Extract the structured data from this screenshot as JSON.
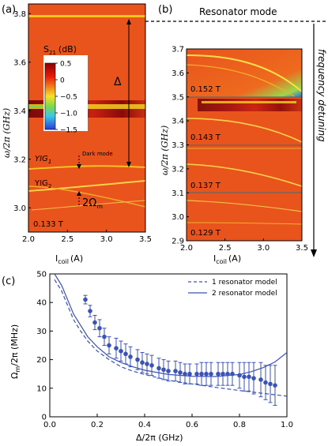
{
  "panel_labels": {
    "a": "(a)",
    "b": "(b)",
    "c": "(c)"
  },
  "annotations": {
    "resonator_mode": "Resonator mode",
    "frequency_detuning": "frequency detuning",
    "delta": "Δ",
    "yig1": "YIG",
    "yig1_sub": "1",
    "yig2": "YIG",
    "yig2_sub": "2",
    "dark_mode": "Dark mode",
    "two_omega": "2Ω",
    "two_omega_sub": "m"
  },
  "colors": {
    "heatmap_bg": "#e8541c",
    "resonator_band": "#f2d21f",
    "model_line": "#3b52b8",
    "dark_mode_text": "#8a8fd8"
  },
  "chart_data": [
    {
      "type": "heatmap",
      "panel": "(a)",
      "xlabel": "I",
      "xlabel_sub": "coil",
      "xlabel_unit": "(A)",
      "ylabel": "ω/2π (GHz)",
      "xlim": [
        2.0,
        3.5
      ],
      "ylim": [
        2.9,
        3.84
      ],
      "xticks": [
        "2.0",
        "2.5",
        "3.0",
        "3.5"
      ],
      "yticks": [
        "3.0",
        "3.2",
        "3.4",
        "3.6",
        "3.8"
      ],
      "field_label": "0.133 T",
      "colorbar": {
        "title": "S",
        "title_sub": "21",
        "title_unit": "(dB)",
        "min": -1.5,
        "max": 0.5,
        "ticks": [
          "0.5",
          "0",
          "−0.5",
          "−1.0",
          "−1.5"
        ]
      }
    },
    {
      "type": "heatmap",
      "panel": "(b)",
      "xlabel": "I",
      "xlabel_sub": "coil",
      "xlabel_unit": "(A)",
      "ylabel": "ω/2π (GHz)",
      "xlim": [
        2.0,
        3.5
      ],
      "ylim": [
        2.9,
        3.7
      ],
      "xticks": [
        "2.0",
        "2.5",
        "3.0",
        "3.5"
      ],
      "yticks": [
        "2.9",
        "3.0",
        "3.1",
        "3.2",
        "3.3",
        "3.4",
        "3.5",
        "3.6",
        "3.7"
      ],
      "strips": [
        {
          "field": "0.152 T",
          "ylim": [
            3.5,
            3.7
          ]
        },
        {
          "field": "0.143 T",
          "ylim": [
            3.3,
            3.5
          ]
        },
        {
          "field": "0.137 T",
          "ylim": [
            3.1,
            3.3
          ]
        },
        {
          "field": "0.129 T",
          "ylim": [
            2.9,
            3.1
          ]
        }
      ]
    },
    {
      "type": "scatter",
      "panel": "(c)",
      "xlabel": "Δ/2π (GHz)",
      "ylabel": "Ω",
      "ylabel_sub": "m",
      "ylabel_tail": "/2π (MHz)",
      "xlim": [
        0.0,
        1.0
      ],
      "ylim": [
        0,
        50
      ],
      "xticks": [
        "0.0",
        "0.2",
        "0.4",
        "0.6",
        "0.8",
        "1.0"
      ],
      "yticks": [
        "0",
        "10",
        "20",
        "30",
        "40",
        "50"
      ],
      "legend": {
        "placement": "top-right",
        "entries": [
          "1 resonator model",
          "2 resonator model"
        ]
      },
      "points": [
        {
          "x": 0.15,
          "y": 41.0,
          "err": 1.5
        },
        {
          "x": 0.17,
          "y": 37.0,
          "err": 2.0
        },
        {
          "x": 0.19,
          "y": 33.0,
          "err": 2.5
        },
        {
          "x": 0.21,
          "y": 31.0,
          "err": 3.0
        },
        {
          "x": 0.23,
          "y": 28.0,
          "err": 3.0
        },
        {
          "x": 0.25,
          "y": 25.0,
          "err": 3.0
        },
        {
          "x": 0.28,
          "y": 24.0,
          "err": 3.5
        },
        {
          "x": 0.3,
          "y": 23.0,
          "err": 3.5
        },
        {
          "x": 0.32,
          "y": 22.0,
          "err": 3.5
        },
        {
          "x": 0.34,
          "y": 21.0,
          "err": 3.5
        },
        {
          "x": 0.37,
          "y": 20.0,
          "err": 3.5
        },
        {
          "x": 0.39,
          "y": 19.0,
          "err": 3.5
        },
        {
          "x": 0.41,
          "y": 18.5,
          "err": 3.5
        },
        {
          "x": 0.43,
          "y": 18.0,
          "err": 3.5
        },
        {
          "x": 0.46,
          "y": 17.0,
          "err": 3.5
        },
        {
          "x": 0.48,
          "y": 16.5,
          "err": 3.5
        },
        {
          "x": 0.5,
          "y": 16.0,
          "err": 3.5
        },
        {
          "x": 0.53,
          "y": 16.0,
          "err": 3.5
        },
        {
          "x": 0.55,
          "y": 15.5,
          "err": 3.5
        },
        {
          "x": 0.57,
          "y": 15.0,
          "err": 3.5
        },
        {
          "x": 0.59,
          "y": 15.0,
          "err": 3.5
        },
        {
          "x": 0.62,
          "y": 15.0,
          "err": 3.5
        },
        {
          "x": 0.64,
          "y": 15.0,
          "err": 4.0
        },
        {
          "x": 0.66,
          "y": 15.0,
          "err": 4.0
        },
        {
          "x": 0.68,
          "y": 15.0,
          "err": 4.0
        },
        {
          "x": 0.71,
          "y": 15.0,
          "err": 4.0
        },
        {
          "x": 0.73,
          "y": 15.0,
          "err": 4.0
        },
        {
          "x": 0.75,
          "y": 15.0,
          "err": 4.0
        },
        {
          "x": 0.77,
          "y": 15.0,
          "err": 4.0
        },
        {
          "x": 0.8,
          "y": 14.5,
          "err": 4.5
        },
        {
          "x": 0.82,
          "y": 14.0,
          "err": 5.0
        },
        {
          "x": 0.84,
          "y": 14.0,
          "err": 5.0
        },
        {
          "x": 0.86,
          "y": 13.5,
          "err": 5.5
        },
        {
          "x": 0.89,
          "y": 13.0,
          "err": 6.0
        },
        {
          "x": 0.91,
          "y": 12.0,
          "err": 6.0
        },
        {
          "x": 0.93,
          "y": 11.5,
          "err": 6.5
        },
        {
          "x": 0.95,
          "y": 11.0,
          "err": 7.0
        }
      ],
      "series": [
        {
          "name": "1 resonator model",
          "style": "dashed",
          "x": [
            0.02,
            0.05,
            0.08,
            0.1,
            0.13,
            0.16,
            0.2,
            0.25,
            0.3,
            0.35,
            0.4,
            0.5,
            0.6,
            0.7,
            0.8,
            0.9,
            1.0
          ],
          "y": [
            48,
            44,
            38,
            34,
            30,
            26.5,
            23,
            20,
            17.5,
            16,
            14.8,
            12.8,
            11.5,
            10.3,
            9.2,
            8.2,
            7.2
          ]
        },
        {
          "name": "2 resonator model",
          "style": "solid",
          "x": [
            0.02,
            0.05,
            0.08,
            0.1,
            0.13,
            0.16,
            0.2,
            0.25,
            0.3,
            0.35,
            0.4,
            0.5,
            0.6,
            0.7,
            0.8,
            0.85,
            0.9,
            0.95,
            1.0
          ],
          "y": [
            50,
            46,
            40,
            36,
            32,
            28,
            24.5,
            21,
            19,
            17.5,
            16.3,
            14.8,
            14.2,
            14.1,
            14.8,
            15.8,
            17.2,
            19.2,
            22.5
          ]
        }
      ]
    }
  ]
}
